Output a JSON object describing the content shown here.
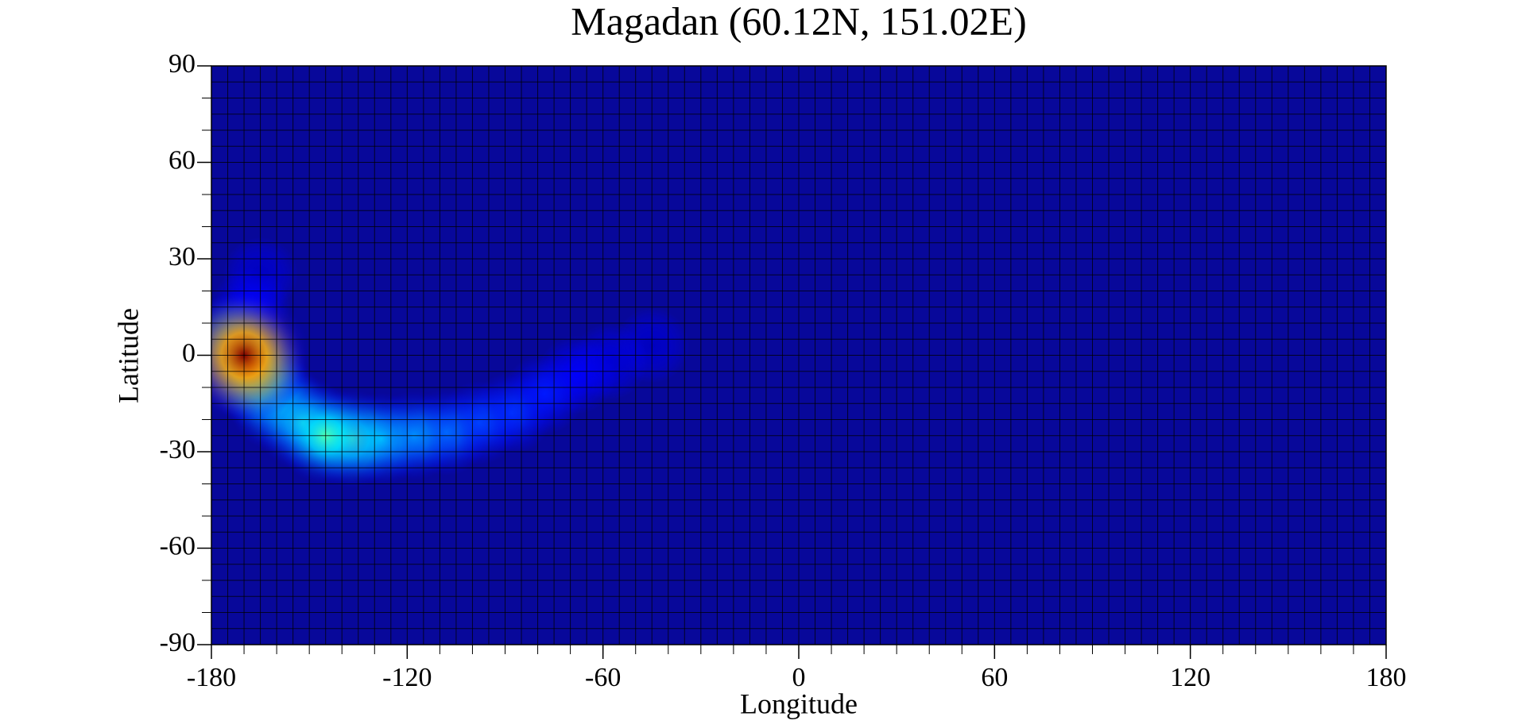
{
  "chart_data": {
    "type": "heatmap",
    "title": "Magadan (60.12N, 151.02E)",
    "x_label": "Longitude",
    "y_label": "Latitude",
    "xlim": [
      -180,
      180
    ],
    "xticks": [
      -180,
      -120,
      -60,
      0,
      60,
      120,
      180
    ],
    "ylim": [
      -90,
      90
    ],
    "yticks": [
      -90,
      -60,
      -30,
      0,
      30,
      60,
      90
    ],
    "grid": true,
    "grid_step": 5,
    "minor_tick_step": 10,
    "colormap": "jet",
    "x": [
      -45,
      -58,
      -165,
      -68,
      -168,
      -78,
      -88,
      -98,
      -108,
      -118,
      -128,
      -160,
      -165,
      -152,
      -137,
      -145,
      -172,
      -168,
      -170
    ],
    "y": [
      3,
      -2,
      25,
      -6,
      15,
      -12,
      -18,
      -21,
      -24,
      -25,
      -26,
      -15,
      -8,
      -21,
      -26,
      -25,
      3,
      -3,
      0
    ],
    "values": [
      0.06,
      0.08,
      0.06,
      0.12,
      0.12,
      0.15,
      0.18,
      0.2,
      0.25,
      0.3,
      0.35,
      0.4,
      0.45,
      0.4,
      0.45,
      0.45,
      0.6,
      0.7,
      1.0
    ]
  }
}
